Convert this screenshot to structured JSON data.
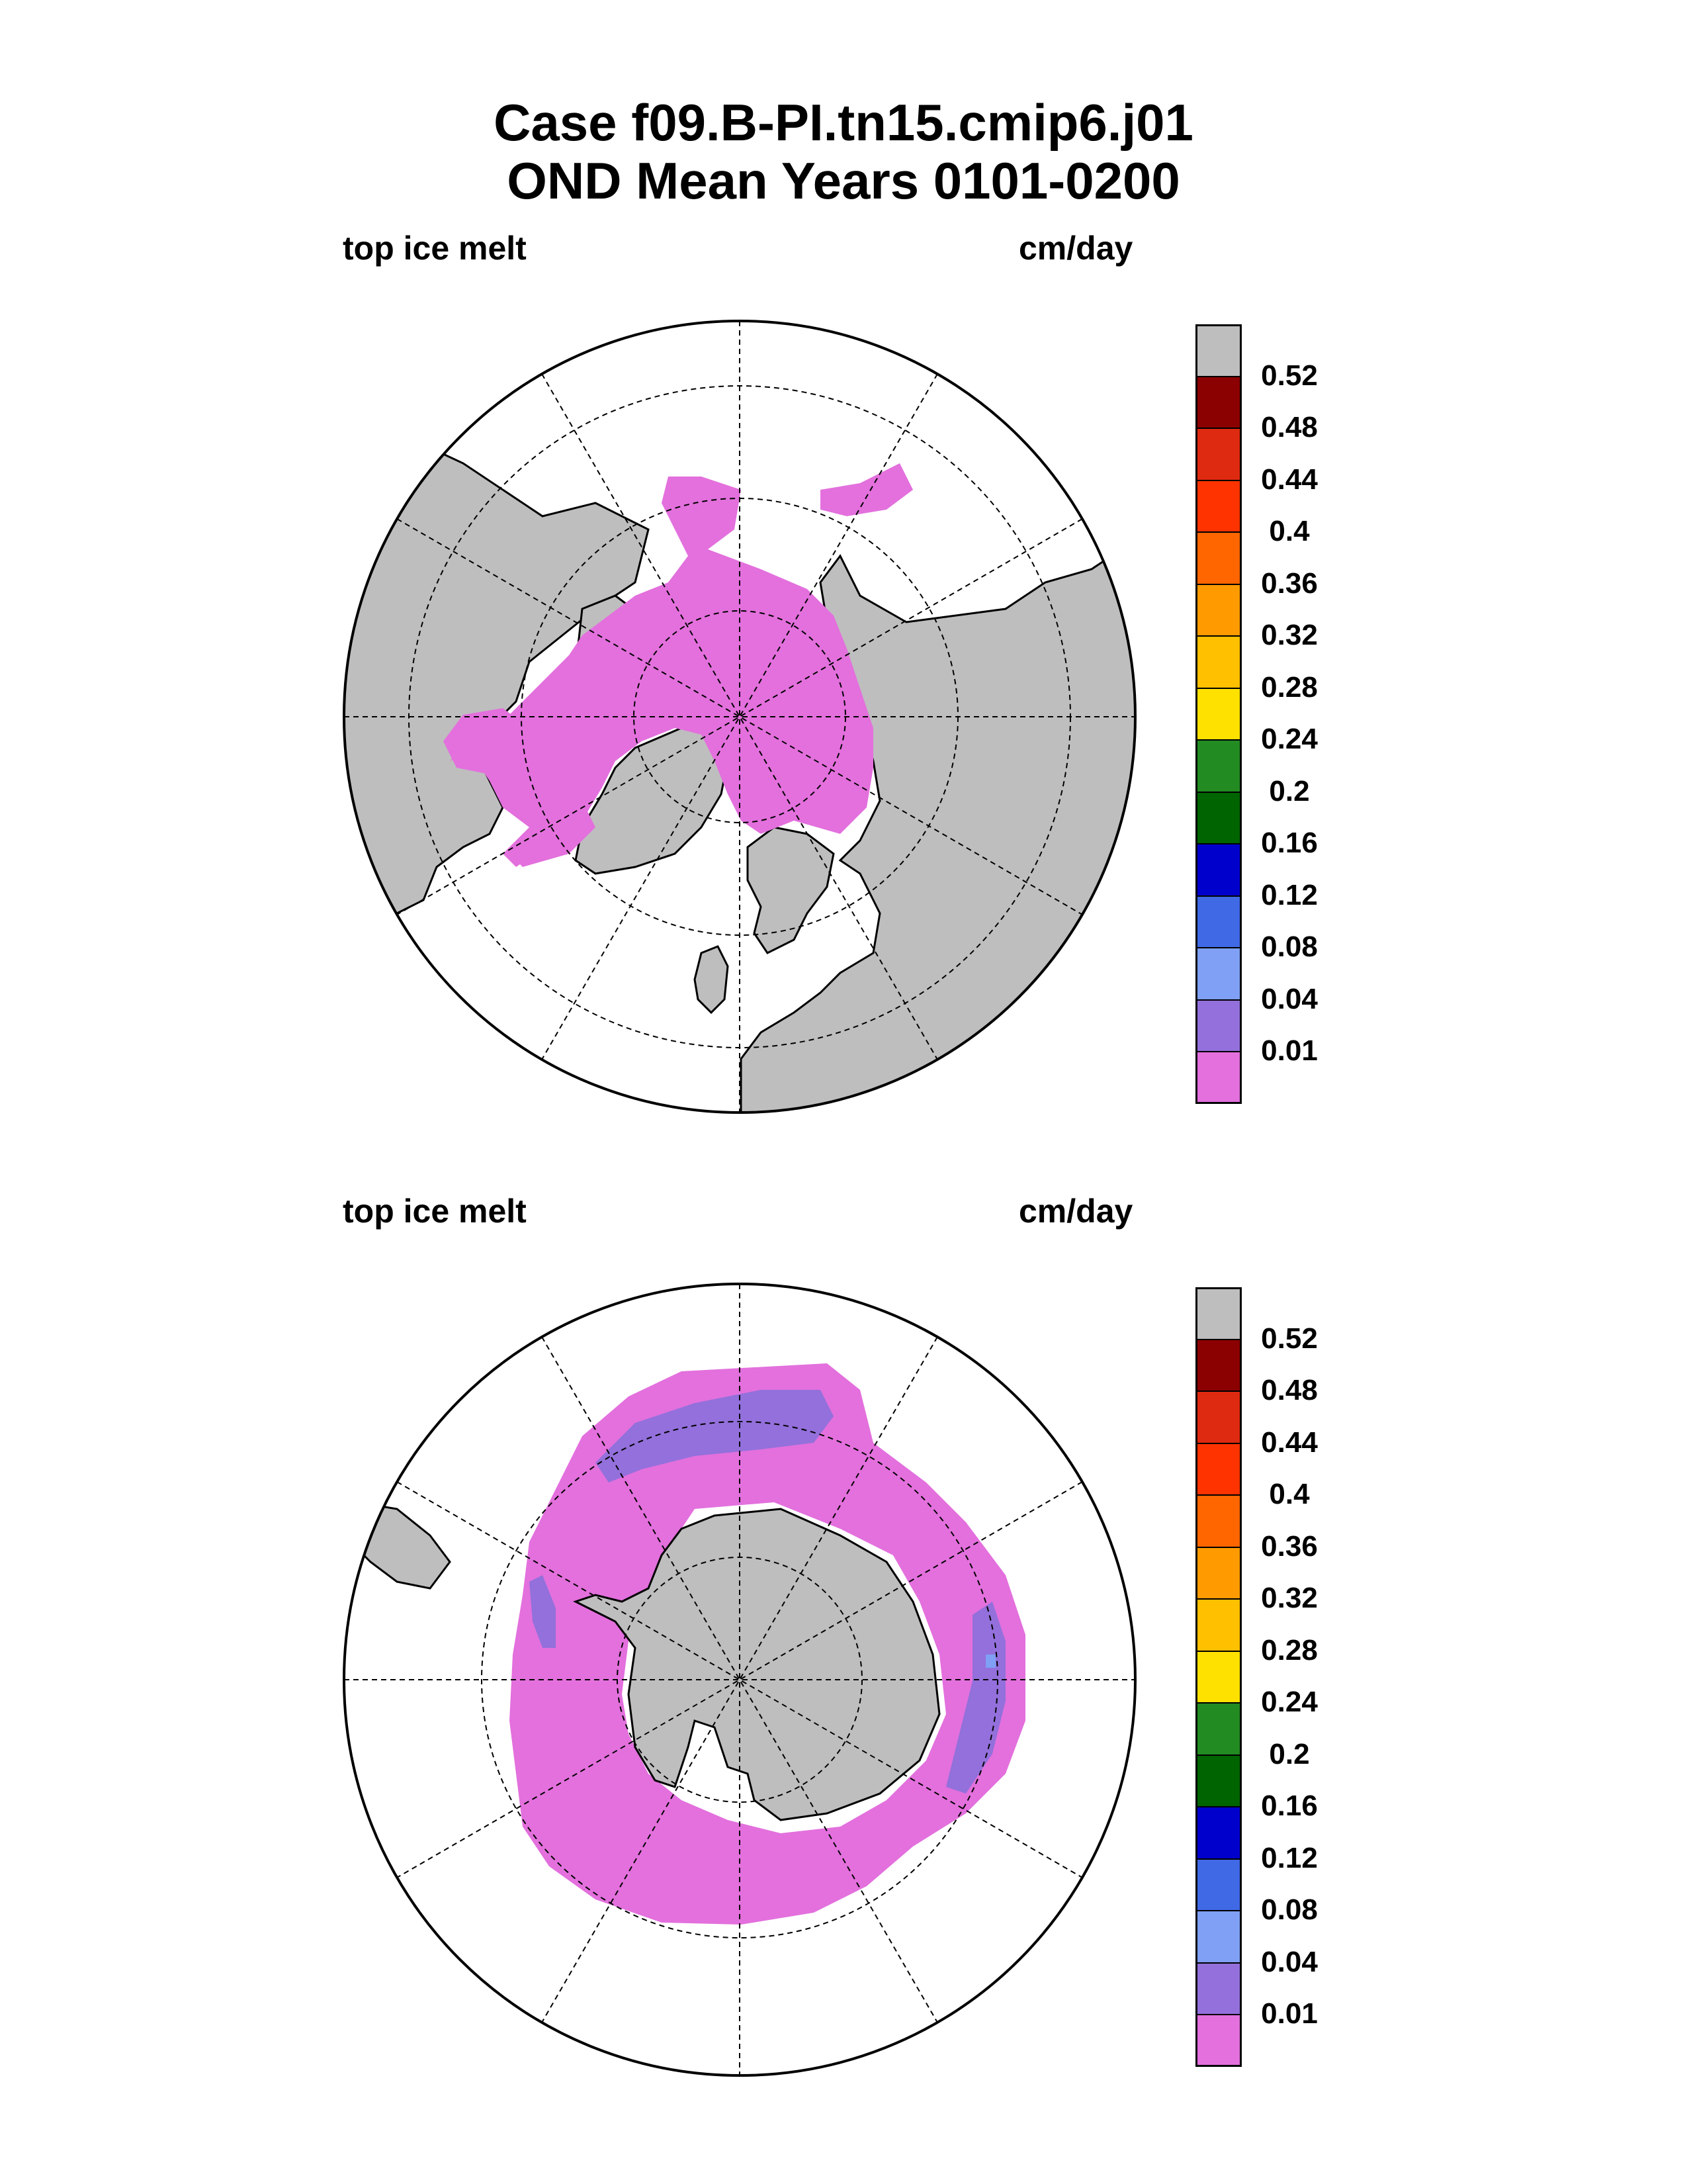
{
  "title": {
    "line1": "Case f09.B-PI.tn15.cmip6.j01",
    "line2": "OND Mean   Years 0101-0200"
  },
  "panels": [
    {
      "hemisphere": "north",
      "variable_label": "top ice melt",
      "units_label": "cm/day"
    },
    {
      "hemisphere": "south",
      "variable_label": "top ice melt",
      "units_label": "cm/day"
    }
  ],
  "colorbar": {
    "colors": [
      "#e370dd",
      "#9370db",
      "#7fa0f4",
      "#4069e6",
      "#0000cd",
      "#006400",
      "#228b22",
      "#ffe100",
      "#ffc000",
      "#ff9a00",
      "#ff6600",
      "#ff3300",
      "#de2a10",
      "#8b0000",
      "#bebebe"
    ],
    "tick_labels": [
      "0.01",
      "0.04",
      "0.08",
      "0.12",
      "0.16",
      "0.2",
      "0.24",
      "0.28",
      "0.32",
      "0.36",
      "0.4",
      "0.44",
      "0.48",
      "0.52"
    ]
  },
  "map_colors": {
    "land": "#bebebe",
    "ocean": "#ffffff",
    "ice_low": "#e370dd",
    "ice_mid": "#9370db",
    "ice_high": "#7fa0f4"
  }
}
